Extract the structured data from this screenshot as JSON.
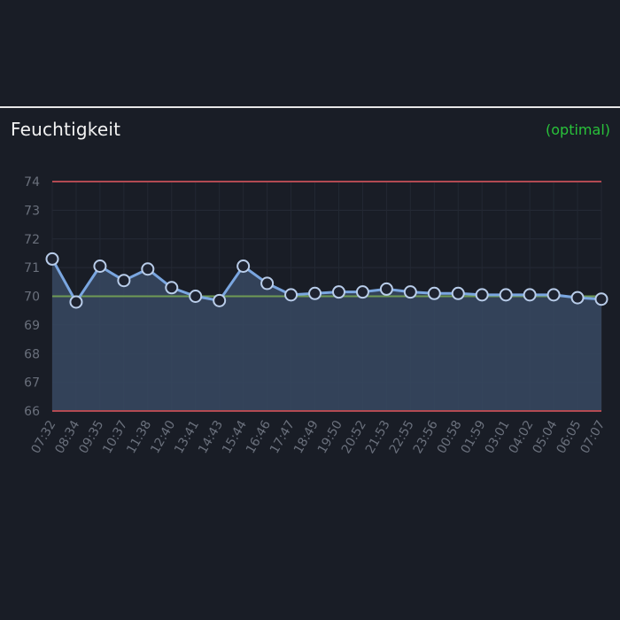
{
  "card": {
    "title": "Feuchtigkeit",
    "status": "(optimal)",
    "status_color": "#29c23a"
  },
  "chart_data": {
    "type": "area",
    "title": "",
    "xlabel": "",
    "ylabel": "",
    "ylim": [
      66,
      74
    ],
    "yticks": [
      74,
      73,
      72,
      71,
      70,
      69,
      68,
      67,
      66
    ],
    "grid": true,
    "x": [
      "07:32",
      "08:34",
      "09:35",
      "10:37",
      "11:38",
      "12:40",
      "13:41",
      "14:43",
      "15:44",
      "16:46",
      "17:47",
      "18:49",
      "19:50",
      "20:52",
      "21:53",
      "22:55",
      "23:56",
      "00:58",
      "01:59",
      "03:01",
      "04:02",
      "05:04",
      "06:05",
      "07:07"
    ],
    "series": [
      {
        "values": [
          71.3,
          69.8,
          71.05,
          70.55,
          70.95,
          70.3,
          70.0,
          69.85,
          71.05,
          70.45,
          70.05,
          70.1,
          70.15,
          70.15,
          70.25,
          70.15,
          70.1,
          70.1,
          70.05,
          70.05,
          70.05,
          70.05,
          69.95,
          69.9
        ],
        "color": "#7aa6e0",
        "fill": "#36475f"
      }
    ],
    "reference_lines": [
      {
        "value": 74,
        "color": "#b24a52"
      },
      {
        "value": 66,
        "color": "#b24a52"
      },
      {
        "value": 70,
        "color": "#6f9a55"
      }
    ]
  }
}
